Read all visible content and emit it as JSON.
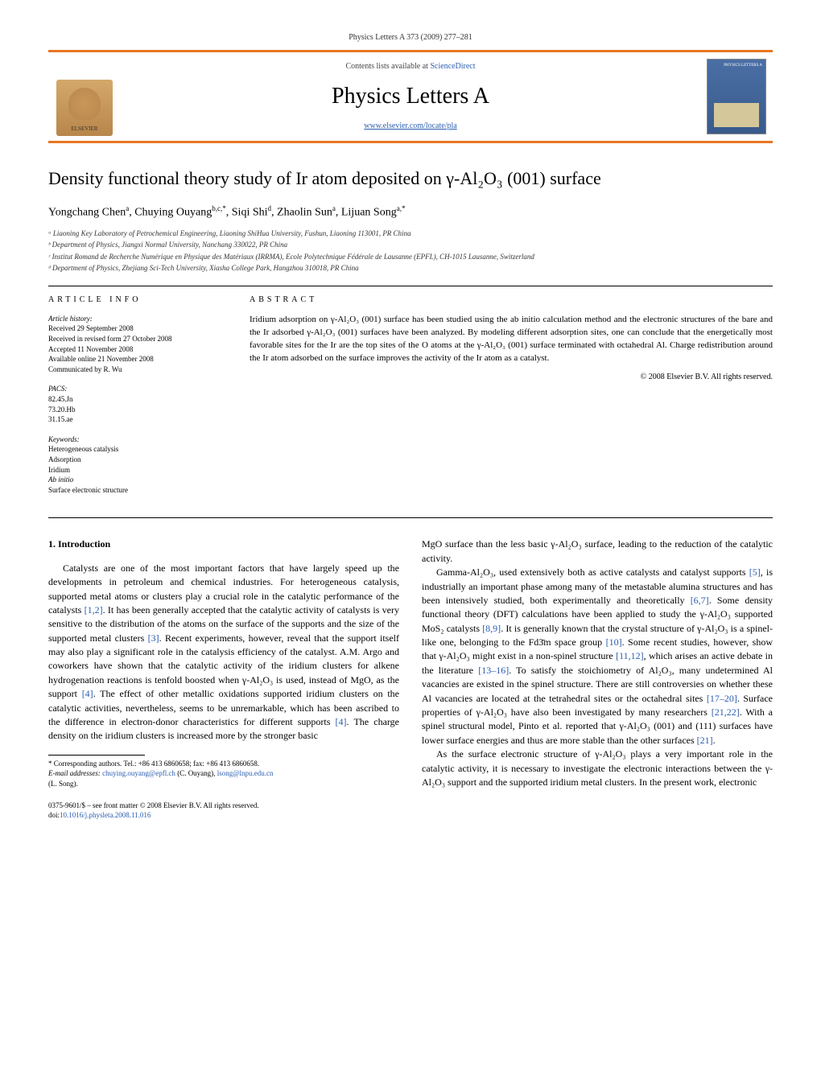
{
  "header": {
    "citation": "Physics Letters A 373 (2009) 277–281",
    "contents_prefix": "Contents lists available at ",
    "contents_link": "ScienceDirect",
    "journal_name": "Physics Letters A",
    "journal_url": "www.elsevier.com/locate/pla",
    "elsevier_label": "ELSEVIER",
    "cover_label": "PHYSICS LETTERS A"
  },
  "title": "Density functional theory study of Ir atom deposited on γ-Al₂O₃ (001) surface",
  "authors_html": "Yongchang Chen<sup>a</sup>, Chuying Ouyang<sup>b,c,*</sup>, Siqi Shi<sup>d</sup>, Zhaolin Sun<sup>a</sup>, Lijuan Song<sup>a,*</sup>",
  "affiliations": [
    "ᵃ Liaoning Key Laboratory of Petrochemical Engineering, Liaoning ShiHua University, Fushun, Liaoning 113001, PR China",
    "ᵇ Department of Physics, Jiangxi Normal University, Nanchang 330022, PR China",
    "ᶜ Institut Romand de Recherche Numérique en Physique des Matériaux (IRRMA), Ecole Polytechnique Fédérale de Lausanne (EPFL), CH-1015 Lausanne, Switzerland",
    "ᵈ Department of Physics, Zhejiang Sci-Tech University, Xiasha College Park, Hangzhou 310018, PR China"
  ],
  "info": {
    "heading": "ARTICLE INFO",
    "history_label": "Article history:",
    "history": [
      "Received 29 September 2008",
      "Received in revised form 27 October 2008",
      "Accepted 11 November 2008",
      "Available online 21 November 2008",
      "Communicated by R. Wu"
    ],
    "pacs_label": "PACS:",
    "pacs": [
      "82.45.Jn",
      "73.20.Hb",
      "31.15.ae"
    ],
    "keywords_label": "Keywords:",
    "keywords": [
      "Heterogeneous catalysis",
      "Adsorption",
      "Iridium",
      "Ab initio",
      "Surface electronic structure"
    ]
  },
  "abstract": {
    "heading": "ABSTRACT",
    "text": "Iridium adsorption on γ-Al₂O₃ (001) surface has been studied using the ab initio calculation method and the electronic structures of the bare and the Ir adsorbed γ-Al₂O₃ (001) surfaces have been analyzed. By modeling different adsorption sites, one can conclude that the energetically most favorable sites for the Ir are the top sites of the O atoms at the γ-Al₂O₃ (001) surface terminated with octahedral Al. Charge redistribution around the Ir atom adsorbed on the surface improves the activity of the Ir atom as a catalyst.",
    "copyright": "© 2008 Elsevier B.V. All rights reserved."
  },
  "body": {
    "section_heading": "1. Introduction",
    "col1_p1": "Catalysts are one of the most important factors that have largely speed up the developments in petroleum and chemical industries. For heterogeneous catalysis, supported metal atoms or clusters play a crucial role in the catalytic performance of the catalysts [1,2]. It has been generally accepted that the catalytic activity of catalysts is very sensitive to the distribution of the atoms on the surface of the supports and the size of the supported metal clusters [3]. Recent experiments, however, reveal that the support itself may also play a significant role in the catalysis efficiency of the catalyst. A.M. Argo and coworkers have shown that the catalytic activity of the iridium clusters for alkene hydrogenation reactions is tenfold boosted when γ-Al₂O₃ is used, instead of MgO, as the support [4]. The effect of other metallic oxidations supported iridium clusters on the catalytic activities, nevertheless, seems to be unremarkable, which has been ascribed to the difference in electron-donor characteristics for different supports [4]. The charge density on the iridium clusters is increased more by the stronger basic",
    "col2_p1": "MgO surface than the less basic γ-Al₂O₃ surface, leading to the reduction of the catalytic activity.",
    "col2_p2": "Gamma-Al₂O₃, used extensively both as active catalysts and catalyst supports [5], is industrially an important phase among many of the metastable alumina structures and has been intensively studied, both experimentally and theoretically [6,7]. Some density functional theory (DFT) calculations have been applied to study the γ-Al₂O₃ supported MoS₂ catalysts [8,9]. It is generally known that the crystal structure of γ-Al₂O₃ is a spinel-like one, belonging to the Fd3̄m space group [10]. Some recent studies, however, show that γ-Al₂O₃ might exist in a non-spinel structure [11,12], which arises an active debate in the literature [13–16]. To satisfy the stoichiometry of Al₂O₃, many undetermined Al vacancies are existed in the spinel structure. There are still controversies on whether these Al vacancies are located at the tetrahedral sites or the octahedral sites [17–20]. Surface properties of γ-Al₂O₃ have also been investigated by many researchers [21,22]. With a spinel structural model, Pinto et al. reported that γ-Al₂O₃ (001) and (111) surfaces have lower surface energies and thus are more stable than the other surfaces [21].",
    "col2_p3": "As the surface electronic structure of γ-Al₂O₃ plays a very important role in the catalytic activity, it is necessary to investigate the electronic interactions between the γ-Al₂O₃ support and the supported iridium metal clusters. In the present work, electronic"
  },
  "footnotes": {
    "corr": "* Corresponding authors. Tel.: +86 413 6860658; fax: +86 413 6860658.",
    "email_label": "E-mail addresses:",
    "email1": "chuying.ouyang@epfl.ch",
    "email1_who": " (C. Ouyang), ",
    "email2": "lsong@lnpu.edu.cn",
    "email2_who": "(L. Song)."
  },
  "bottom": {
    "issn": "0375-9601/$ – see front matter © 2008 Elsevier B.V. All rights reserved.",
    "doi_label": "doi:",
    "doi": "10.1016/j.physleta.2008.11.016"
  },
  "colors": {
    "accent": "#e87722",
    "link": "#2a5db0",
    "logo_bg": "#b8864b",
    "cover_bg": "#4a6fa5"
  },
  "typography": {
    "body_pt": 12,
    "title_pt": 22,
    "journal_pt": 28,
    "small_pt": 9,
    "font_family": "Georgia, Times New Roman, serif"
  }
}
